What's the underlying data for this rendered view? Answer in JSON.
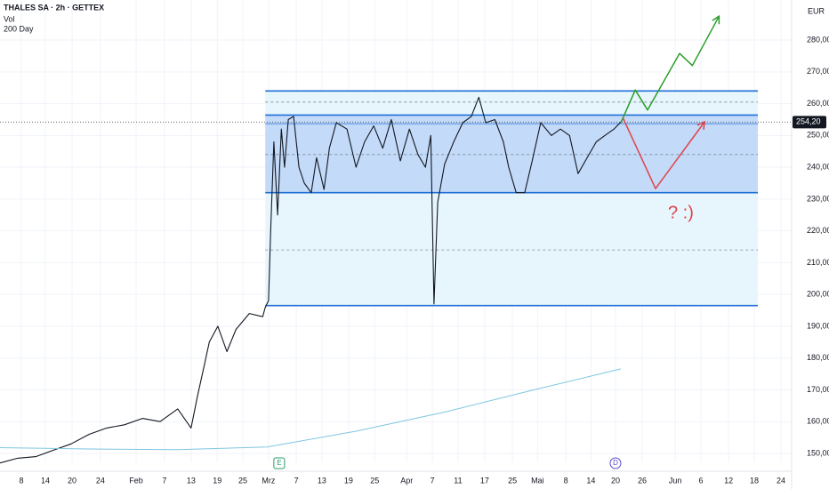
{
  "chart_data": {
    "type": "line",
    "title": "THALES SA · 2h · GETTEX",
    "indicators": [
      "Vol",
      "200 Day"
    ],
    "currency": "EUR",
    "last_price": {
      "value": 254.2,
      "label": "254,20"
    },
    "annotation": "? :)",
    "event_markers": [
      {
        "x": 52.3,
        "label": "E"
      },
      {
        "x": 115.3,
        "label": "D"
      }
    ],
    "xlim": [
      0,
      148.3
    ],
    "ylim": [
      147.2,
      292.6
    ],
    "yticks": [
      {
        "value": 150,
        "label": "150,00"
      },
      {
        "value": 160,
        "label": "160,00"
      },
      {
        "value": 170,
        "label": "170,00"
      },
      {
        "value": 180,
        "label": "180,00"
      },
      {
        "value": 190,
        "label": "190,00"
      },
      {
        "value": 200,
        "label": "200,00"
      },
      {
        "value": 210,
        "label": "210,00"
      },
      {
        "value": 220,
        "label": "220,00"
      },
      {
        "value": 230,
        "label": "230,00"
      },
      {
        "value": 240,
        "label": "240,00"
      },
      {
        "value": 250,
        "label": "250,00"
      },
      {
        "value": 260,
        "label": "260,00"
      },
      {
        "value": 270,
        "label": "270,00"
      },
      {
        "value": 280,
        "label": "280,00"
      }
    ],
    "xticks": [
      {
        "value": 4,
        "label": "8"
      },
      {
        "value": 8.5,
        "label": "14"
      },
      {
        "value": 13.5,
        "label": "20"
      },
      {
        "value": 18.8,
        "label": "24"
      },
      {
        "value": 25.5,
        "label": "Feb"
      },
      {
        "value": 30.8,
        "label": "7"
      },
      {
        "value": 35.8,
        "label": "13"
      },
      {
        "value": 40.7,
        "label": "19"
      },
      {
        "value": 45.5,
        "label": "25"
      },
      {
        "value": 50.3,
        "label": "Mrz"
      },
      {
        "value": 55.5,
        "label": "7"
      },
      {
        "value": 60.3,
        "label": "13"
      },
      {
        "value": 65.3,
        "label": "19"
      },
      {
        "value": 70.2,
        "label": "25"
      },
      {
        "value": 76.2,
        "label": "Apr"
      },
      {
        "value": 81,
        "label": "7"
      },
      {
        "value": 85.8,
        "label": "11"
      },
      {
        "value": 90.8,
        "label": "17"
      },
      {
        "value": 96,
        "label": "25"
      },
      {
        "value": 100.7,
        "label": "Mai"
      },
      {
        "value": 106,
        "label": "8"
      },
      {
        "value": 110.7,
        "label": "14"
      },
      {
        "value": 115.3,
        "label": "20"
      },
      {
        "value": 120.3,
        "label": "26"
      },
      {
        "value": 126.5,
        "label": "Jun"
      },
      {
        "value": 131.3,
        "label": "6"
      },
      {
        "value": 136.5,
        "label": "12"
      },
      {
        "value": 141.3,
        "label": "18"
      },
      {
        "value": 146.3,
        "label": "24"
      }
    ],
    "zones": [
      {
        "from": 196.5,
        "to": 264,
        "color": "#e3f4fb"
      },
      {
        "from": 232,
        "to": 256.4,
        "color": "#bcd5f7"
      }
    ],
    "levels": [
      {
        "value": 264,
        "style": "solid"
      },
      {
        "value": 256.4,
        "style": "solid"
      },
      {
        "value": 253.7,
        "style": "thin"
      },
      {
        "value": 232,
        "style": "solid"
      },
      {
        "value": 196.5,
        "style": "solid"
      },
      {
        "value": 260.5,
        "style": "dashed"
      },
      {
        "value": 244,
        "style": "dashed"
      },
      {
        "value": 214,
        "style": "dashed"
      }
    ],
    "series": [
      {
        "name": "Price",
        "color": "#131722",
        "x": [
          0,
          3.3,
          6.7,
          10,
          13.3,
          16.7,
          20,
          23.3,
          26.7,
          30,
          33.3,
          35.8,
          37,
          38.3,
          39.2,
          40.8,
          42.5,
          44.2,
          46.7,
          49.2,
          49.7,
          50.3,
          50.7,
          51.3,
          52,
          52.7,
          53.3,
          54,
          55,
          56,
          57,
          58.3,
          59.3,
          60.7,
          61.7,
          63,
          65,
          66.7,
          68.3,
          70,
          71.7,
          73.3,
          75,
          76.7,
          78.3,
          79.7,
          80.7,
          81.3,
          82,
          83.3,
          85,
          86.7,
          88.3,
          89.7,
          91,
          92.7,
          94.3,
          95.3,
          96.7,
          98.3,
          99.7,
          101.3,
          103.3,
          105,
          106.7,
          108.3,
          110,
          111.7,
          113.3,
          115,
          116.3
        ],
        "values": [
          147,
          148.5,
          149,
          151,
          153,
          156,
          158,
          159,
          161,
          160,
          164,
          158,
          168,
          178,
          185,
          190,
          182,
          189,
          194,
          193,
          196,
          198,
          220,
          248,
          225,
          252,
          240,
          255,
          256,
          240,
          235,
          232,
          243,
          233,
          246,
          254,
          252,
          240,
          248,
          253,
          246,
          255,
          242,
          252,
          244,
          240,
          250,
          197,
          229,
          241,
          248,
          254,
          256,
          262,
          254,
          255,
          248,
          240,
          232,
          232,
          242,
          254,
          250,
          252,
          250,
          238,
          243,
          248,
          250,
          252,
          254.2
        ]
      },
      {
        "name": "200 Day",
        "color": "#7fc6e0",
        "x": [
          0,
          16.7,
          33.3,
          50,
          66.7,
          83.3,
          100,
          116.3
        ],
        "values": [
          151.8,
          151.4,
          151.2,
          152,
          157,
          163,
          170,
          176.6
        ]
      }
    ],
    "projections": [
      {
        "color": "#2a9d2a",
        "x": [
          116.3,
          119,
          121.3,
          127.3,
          129.7,
          134.7
        ],
        "values": [
          254,
          264.3,
          258,
          275.8,
          272,
          287.5
        ]
      },
      {
        "color": "#e0424b",
        "x": [
          116.7,
          122.8,
          132
        ],
        "values": [
          255.5,
          233.3,
          254.3
        ]
      }
    ]
  }
}
